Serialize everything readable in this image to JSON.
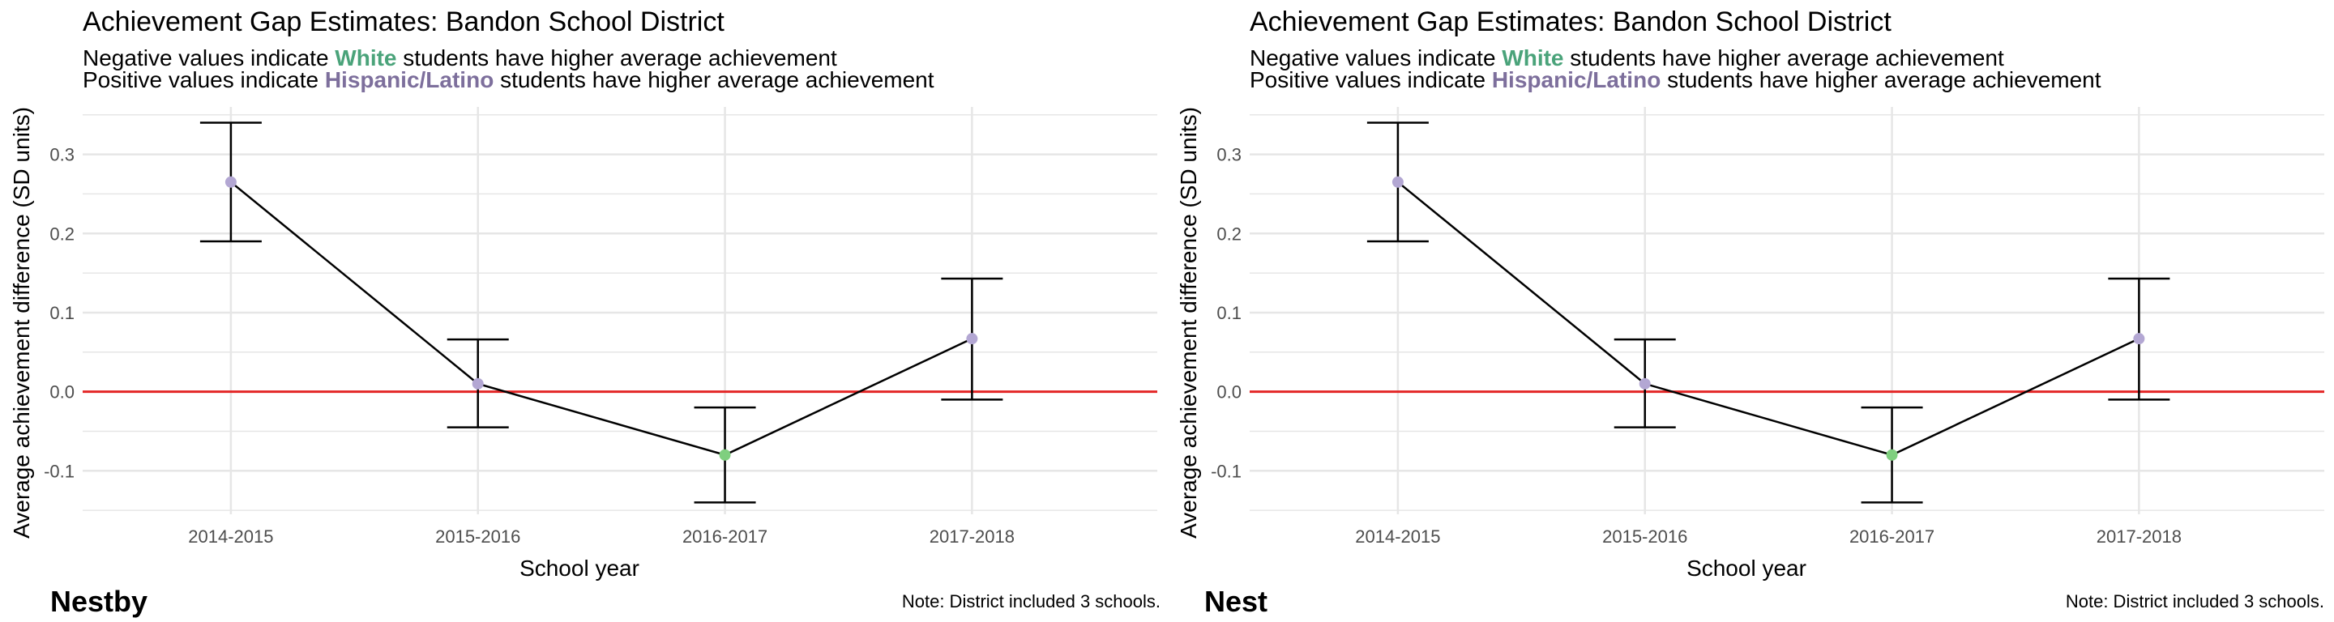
{
  "panels": [
    {
      "id": "left",
      "title": "Achievement Gap Estimates: Bandon School District",
      "subtitle_line1": {
        "before": "Negative values indicate ",
        "highlight": "White",
        "after": " students have higher average achievement"
      },
      "subtitle_line2": {
        "before": "Positive values indicate ",
        "highlight": "Hispanic/Latino",
        "after": " students have higher average achievement"
      },
      "footer_name": "Nestby",
      "footer_note": "Note: District included 3 schools."
    },
    {
      "id": "right",
      "title": "Achievement Gap Estimates: Bandon School District",
      "subtitle_line1": {
        "before": "Negative values indicate ",
        "highlight": "White",
        "after": " students have higher average achievement"
      },
      "subtitle_line2": {
        "before": "Positive values indicate ",
        "highlight": "Hispanic/Latino",
        "after": " students have higher average achievement"
      },
      "footer_name": "Nest",
      "footer_note": "Note: District included 3 schools."
    }
  ],
  "colors": {
    "white_group": "#4aa37a",
    "hispanic_group": "#7d6f9c",
    "point_positive": "#b3a7d3",
    "point_negative": "#7fcf7f",
    "zero_line": "#e32626",
    "grid": "#e6e6e6",
    "line": "#000000"
  },
  "chart_data": [
    {
      "type": "line",
      "categories": [
        "2014-2015",
        "2015-2016",
        "2016-2017",
        "2017-2018"
      ],
      "values": [
        0.265,
        0.01,
        -0.08,
        0.067
      ],
      "ci_lower": [
        0.19,
        -0.045,
        -0.14,
        -0.01
      ],
      "ci_upper": [
        0.34,
        0.066,
        -0.02,
        0.143
      ],
      "xlabel": "School year",
      "ylabel": "Average achievement difference (SD units)",
      "ylim": [
        -0.155,
        0.36
      ],
      "yticks": [
        -0.1,
        0.0,
        0.1,
        0.2,
        0.3
      ],
      "ytick_labels": [
        "-0.1",
        "0.0",
        "0.1",
        "0.2",
        "0.3"
      ],
      "reference_line": 0,
      "grid": true,
      "legend": "none"
    },
    {
      "type": "line",
      "categories": [
        "2014-2015",
        "2015-2016",
        "2016-2017",
        "2017-2018"
      ],
      "values": [
        0.265,
        0.01,
        -0.08,
        0.067
      ],
      "ci_lower": [
        0.19,
        -0.045,
        -0.14,
        -0.01
      ],
      "ci_upper": [
        0.34,
        0.066,
        -0.02,
        0.143
      ],
      "xlabel": "School year",
      "ylabel": "Average achievement difference (SD units)",
      "ylim": [
        -0.155,
        0.36
      ],
      "yticks": [
        -0.1,
        0.0,
        0.1,
        0.2,
        0.3
      ],
      "ytick_labels": [
        "-0.1",
        "0.0",
        "0.1",
        "0.2",
        "0.3"
      ],
      "reference_line": 0,
      "grid": true,
      "legend": "none"
    }
  ]
}
